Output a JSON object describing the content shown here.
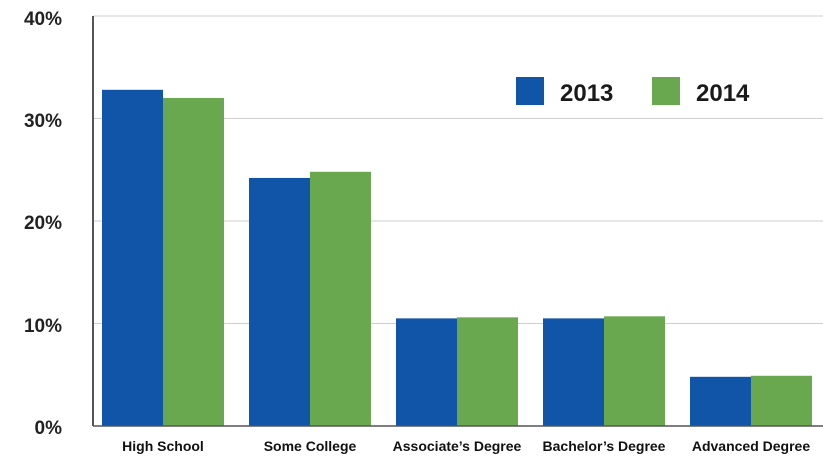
{
  "chart_data": {
    "type": "bar",
    "categories": [
      "High School",
      "Some College",
      "Associate’s Degree",
      "Bachelor’s Degree",
      "Advanced Degree"
    ],
    "series": [
      {
        "name": "2013",
        "values": [
          32.8,
          24.2,
          10.5,
          10.5,
          4.8
        ],
        "color": "#1155a8"
      },
      {
        "name": "2014",
        "values": [
          32.0,
          24.8,
          10.6,
          10.7,
          4.9
        ],
        "color": "#6aa84f"
      }
    ],
    "yticks": [
      "0%",
      "10%",
      "20%",
      "30%",
      "40%"
    ],
    "ytick_values": [
      0,
      10,
      20,
      30,
      40
    ],
    "ylim": [
      0,
      40
    ],
    "ylabel": "",
    "xlabel": "",
    "title": "",
    "grid": true,
    "legend": "top-right"
  }
}
